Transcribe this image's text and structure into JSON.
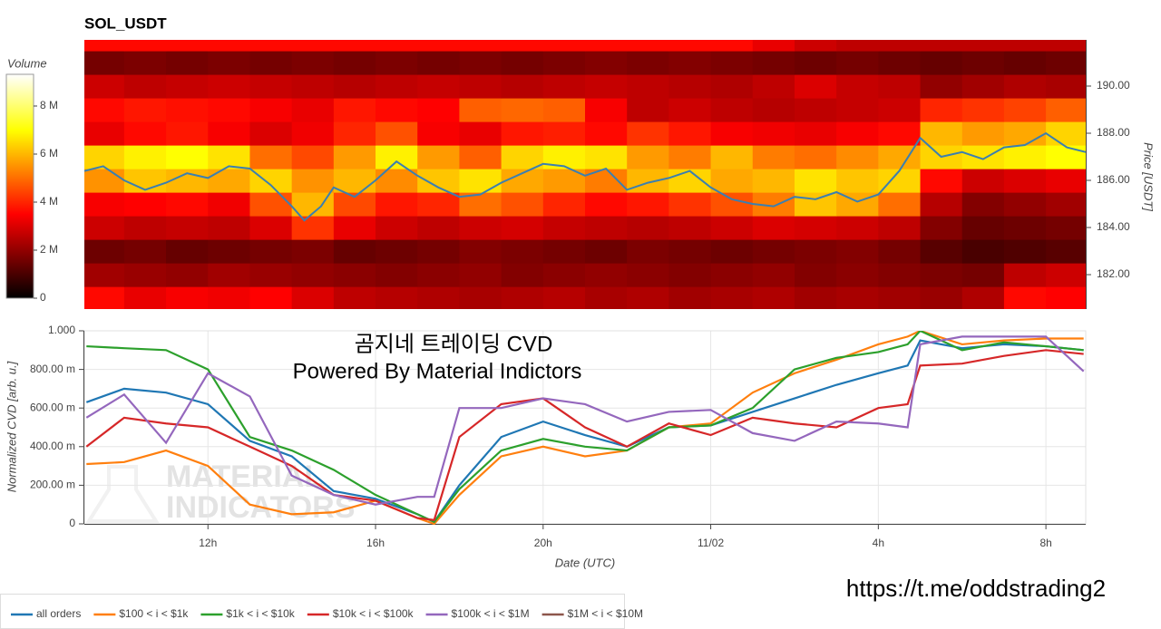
{
  "chart_data": [
    {
      "type": "heatmap",
      "title": "SOL_USDT",
      "x": [
        9.5,
        10.5,
        11.5,
        12.5,
        13.5,
        14.5,
        15.5,
        16.5,
        17.5,
        18.5,
        19.5,
        20.5,
        21.5,
        22.5,
        23.5,
        24.5,
        25.5,
        26.5,
        27.5,
        28.5,
        29.5,
        30.5,
        31.5,
        32.5
      ],
      "y": [
        181,
        182,
        183,
        184,
        185,
        186,
        187,
        188,
        189,
        190,
        191,
        192
      ],
      "z": [
        [
          3.6,
          3.2,
          3.4,
          3.3,
          3.5,
          3.0,
          2.6,
          2.5,
          2.4,
          2.3,
          2.4,
          2.5,
          2.3,
          2.4,
          2.2,
          2.3,
          2.4,
          2.2,
          2.3,
          2.2,
          2.1,
          2.4,
          3.6,
          3.5
        ],
        [
          2.2,
          2.1,
          2.0,
          2.2,
          2.1,
          2.0,
          1.9,
          1.8,
          1.9,
          2.0,
          1.8,
          1.9,
          2.0,
          1.9,
          1.8,
          1.9,
          2.0,
          1.8,
          1.9,
          1.8,
          1.7,
          1.6,
          2.6,
          2.8
        ],
        [
          1.5,
          1.6,
          1.4,
          1.5,
          1.6,
          1.7,
          1.4,
          1.5,
          1.6,
          1.8,
          1.7,
          1.6,
          1.5,
          1.7,
          1.6,
          1.5,
          1.6,
          1.7,
          1.8,
          1.6,
          1.2,
          1.0,
          1.1,
          1.2
        ],
        [
          2.8,
          2.6,
          2.7,
          2.6,
          3.0,
          4.2,
          3.2,
          2.8,
          2.6,
          2.8,
          2.9,
          2.7,
          2.6,
          2.5,
          2.6,
          2.8,
          3.0,
          2.9,
          2.8,
          2.6,
          1.8,
          1.4,
          1.5,
          1.6
        ],
        [
          3.4,
          3.5,
          3.6,
          3.3,
          4.6,
          6.0,
          4.5,
          3.8,
          4.0,
          5.0,
          4.6,
          4.0,
          3.6,
          3.8,
          4.2,
          4.6,
          5.2,
          6.2,
          5.8,
          5.0,
          2.5,
          1.8,
          2.0,
          2.2
        ],
        [
          5.5,
          6.2,
          6.0,
          5.8,
          6.4,
          5.5,
          6.0,
          5.4,
          6.2,
          6.6,
          5.8,
          5.6,
          5.2,
          6.0,
          6.4,
          5.8,
          6.0,
          6.6,
          6.2,
          6.4,
          3.6,
          2.8,
          3.0,
          3.2
        ],
        [
          6.4,
          6.8,
          7.0,
          6.6,
          5.0,
          4.5,
          5.6,
          6.8,
          5.6,
          4.8,
          6.4,
          6.8,
          6.6,
          5.6,
          5.2,
          6.0,
          5.2,
          5.0,
          5.4,
          5.8,
          6.4,
          6.6,
          6.8,
          7.0
        ],
        [
          3.2,
          3.6,
          3.8,
          3.4,
          3.0,
          3.3,
          4.0,
          4.6,
          3.4,
          3.2,
          3.8,
          3.9,
          3.6,
          4.2,
          3.8,
          3.4,
          3.3,
          3.2,
          3.4,
          3.6,
          6.0,
          5.6,
          5.8,
          6.4
        ],
        [
          3.6,
          3.8,
          3.7,
          3.6,
          3.4,
          3.2,
          3.8,
          3.6,
          3.5,
          4.8,
          4.9,
          4.8,
          3.4,
          2.6,
          2.8,
          2.6,
          2.5,
          2.6,
          2.7,
          2.8,
          4.0,
          4.2,
          4.4,
          4.8
        ],
        [
          2.8,
          2.6,
          2.7,
          2.8,
          2.7,
          2.6,
          2.5,
          2.6,
          2.7,
          2.6,
          2.5,
          2.6,
          2.7,
          2.6,
          2.5,
          2.4,
          2.6,
          3.0,
          2.7,
          2.6,
          2.0,
          2.2,
          2.4,
          2.3
        ],
        [
          1.6,
          1.7,
          1.6,
          1.7,
          1.6,
          1.7,
          1.6,
          1.7,
          1.6,
          1.7,
          1.6,
          1.7,
          1.8,
          1.7,
          1.8,
          1.7,
          1.6,
          1.5,
          1.6,
          1.5,
          1.4,
          1.5,
          1.4,
          1.5
        ],
        [
          3.6,
          3.6,
          3.6,
          3.6,
          3.6,
          3.6,
          3.6,
          3.6,
          3.6,
          3.6,
          3.6,
          3.6,
          3.6,
          3.6,
          3.6,
          3.6,
          3.2,
          2.8,
          2.6,
          2.6,
          2.6,
          2.6,
          2.6,
          2.6
        ]
      ],
      "colormap": "hot",
      "colorbar": {
        "label": "Volume",
        "lim": [
          0,
          9.32
        ],
        "ticks": [
          0,
          {
            "value": 2,
            "label": "2 M"
          },
          {
            "value": 4,
            "label": "4 M"
          },
          {
            "value": 6,
            "label": "6 M"
          },
          {
            "value": 8,
            "label": "8 M"
          }
        ]
      },
      "xlim": [
        9.05,
        32.95
      ],
      "y2lim": [
        180.54,
        191.96
      ],
      "y2ticks": [
        {
          "value": 182,
          "label": "182.00"
        },
        {
          "value": 184,
          "label": "184.00"
        },
        {
          "value": 186,
          "label": "186.00"
        },
        {
          "value": 188,
          "label": "188.00"
        },
        {
          "value": 190,
          "label": "190.00"
        }
      ],
      "y2label": "Price [USDT]",
      "price_line": {
        "color": "#3b7fb0",
        "axis": "y2",
        "x": [
          9.05,
          9.5,
          10,
          10.5,
          11,
          11.5,
          12,
          12.5,
          13,
          13.5,
          14,
          14.3,
          14.7,
          15,
          15.5,
          16,
          16.5,
          17,
          17.5,
          18,
          18.5,
          19,
          19.5,
          20,
          20.5,
          21,
          21.5,
          22,
          22.5,
          23,
          23.5,
          24,
          24.5,
          25,
          25.5,
          26,
          26.5,
          27,
          27.5,
          28,
          28.5,
          29,
          29.5,
          30,
          30.5,
          31,
          31.5,
          32,
          32.5,
          32.95
        ],
        "values": [
          186.4,
          186.6,
          186.0,
          185.6,
          185.9,
          186.3,
          186.1,
          186.6,
          186.5,
          185.8,
          184.9,
          184.3,
          184.9,
          185.7,
          185.3,
          186.0,
          186.8,
          186.2,
          185.7,
          185.3,
          185.4,
          185.9,
          186.3,
          186.7,
          186.6,
          186.2,
          186.5,
          185.6,
          185.9,
          186.1,
          186.4,
          185.7,
          185.2,
          185.0,
          184.9,
          185.3,
          185.2,
          185.5,
          185.1,
          185.4,
          186.4,
          187.8,
          187.0,
          187.2,
          186.9,
          187.4,
          187.5,
          188.0,
          187.4,
          187.2
        ]
      }
    },
    {
      "type": "line",
      "x": [
        9.1,
        10,
        11,
        12,
        13,
        14,
        15,
        16,
        17,
        17.4,
        18,
        19,
        20,
        21,
        22,
        23,
        24,
        25,
        26,
        27,
        28,
        28.7,
        29,
        30,
        31,
        32,
        32.9
      ],
      "series": [
        {
          "name": "all orders",
          "color": "#1f77b4",
          "values": [
            0.63,
            0.7,
            0.68,
            0.62,
            0.43,
            0.35,
            0.17,
            0.13,
            0.05,
            0.01,
            0.2,
            0.45,
            0.53,
            0.46,
            0.4,
            0.5,
            0.51,
            0.58,
            0.65,
            0.72,
            0.78,
            0.82,
            0.95,
            0.91,
            0.93,
            0.92,
            0.9
          ]
        },
        {
          "name": "$100 < i < $1k",
          "color": "#ff7f0e",
          "values": [
            0.31,
            0.32,
            0.38,
            0.3,
            0.1,
            0.05,
            0.06,
            0.12,
            0.03,
            0.0,
            0.15,
            0.35,
            0.4,
            0.35,
            0.38,
            0.5,
            0.52,
            0.68,
            0.78,
            0.85,
            0.93,
            0.97,
            1.0,
            0.93,
            0.95,
            0.96,
            0.96
          ]
        },
        {
          "name": "$1k < i < $10k",
          "color": "#2ca02c",
          "values": [
            0.92,
            0.91,
            0.9,
            0.8,
            0.45,
            0.38,
            0.28,
            0.15,
            0.05,
            0.01,
            0.18,
            0.38,
            0.44,
            0.4,
            0.38,
            0.5,
            0.51,
            0.6,
            0.8,
            0.86,
            0.89,
            0.93,
            1.0,
            0.9,
            0.94,
            0.92,
            0.9
          ]
        },
        {
          "name": "$10k < i < $100k",
          "color": "#d62728",
          "values": [
            0.4,
            0.55,
            0.52,
            0.5,
            0.4,
            0.3,
            0.15,
            0.12,
            0.03,
            0.02,
            0.45,
            0.62,
            0.65,
            0.5,
            0.4,
            0.52,
            0.46,
            0.55,
            0.52,
            0.5,
            0.6,
            0.62,
            0.82,
            0.83,
            0.87,
            0.9,
            0.88
          ]
        },
        {
          "name": "$100k < i < $1M",
          "color": "#9467bd",
          "values": [
            0.55,
            0.67,
            0.42,
            0.78,
            0.66,
            0.25,
            0.15,
            0.1,
            0.14,
            0.14,
            0.6,
            0.6,
            0.65,
            0.62,
            0.53,
            0.58,
            0.59,
            0.47,
            0.43,
            0.53,
            0.52,
            0.5,
            0.93,
            0.97,
            0.97,
            0.97,
            0.79
          ]
        },
        {
          "name": "$1M < i < $10M",
          "color": "#8c564b",
          "values": [
            null,
            null,
            null,
            null,
            null,
            null,
            null,
            null,
            null,
            null,
            null,
            null,
            null,
            null,
            null,
            null,
            null,
            null,
            null,
            null,
            null,
            null,
            null,
            null,
            null,
            null,
            null
          ]
        }
      ],
      "xlim": [
        9.05,
        32.95
      ],
      "xticks": [
        {
          "value": 12,
          "label": "12h"
        },
        {
          "value": 16,
          "label": "16h"
        },
        {
          "value": 20,
          "label": "20h"
        },
        {
          "value": 24,
          "label": "11/02"
        },
        {
          "value": 28,
          "label": "4h"
        },
        {
          "value": 32,
          "label": "8h"
        }
      ],
      "ylim": [
        0,
        1
      ],
      "yticks": [
        0,
        {
          "value": 0.2,
          "label": "200.00 m"
        },
        {
          "value": 0.4,
          "label": "400.00 m"
        },
        {
          "value": 0.6,
          "label": "600.00 m"
        },
        {
          "value": 0.8,
          "label": "800.00 m"
        },
        {
          "value": 1,
          "label": "1.000"
        }
      ],
      "xlabel": "Date (UTC)",
      "ylabel": "Normalized CVD [arb. u.]",
      "grid": true,
      "legend": "bottom-left",
      "annotations": [
        "곰지네 트레이딩 CVD",
        "Powered By Material Indictors"
      ],
      "watermark": [
        "MATERIAL",
        "INDICATORS"
      ]
    }
  ],
  "footer": {
    "url": "https://t.me/oddstrading2"
  }
}
